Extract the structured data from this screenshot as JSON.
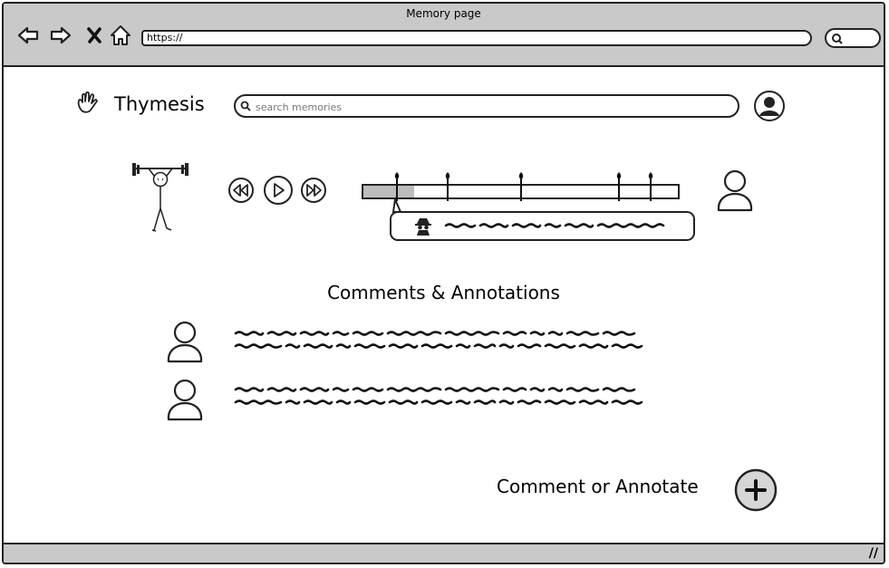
{
  "browser": {
    "title": "Memory page",
    "url": "https://",
    "nav": [
      "back-icon",
      "forward-icon",
      "close-icon",
      "home-icon"
    ],
    "search_icon": "search-icon"
  },
  "app": {
    "brand": "Thymesis",
    "brand_icon": "hand-icon",
    "search_placeholder": "search memories",
    "user_icon": "user-avatar-icon"
  },
  "player": {
    "controls": [
      "rewind-icon",
      "play-icon",
      "fast-forward-icon"
    ],
    "progress_fraction": 0.16,
    "marker_fractions": [
      0.11,
      0.27,
      0.5,
      0.81,
      0.91
    ],
    "tooltip_icon": "spy-icon"
  },
  "comments": {
    "heading": "Comments & Annotations",
    "items": [
      {
        "avatar": "user-icon"
      },
      {
        "avatar": "user-icon"
      }
    ]
  },
  "cta": {
    "label": "Comment or Annotate",
    "icon": "plus-icon"
  },
  "colors": {
    "chrome": "#c9c9c9",
    "ink": "#222222",
    "fill": "#bdbdbd"
  }
}
